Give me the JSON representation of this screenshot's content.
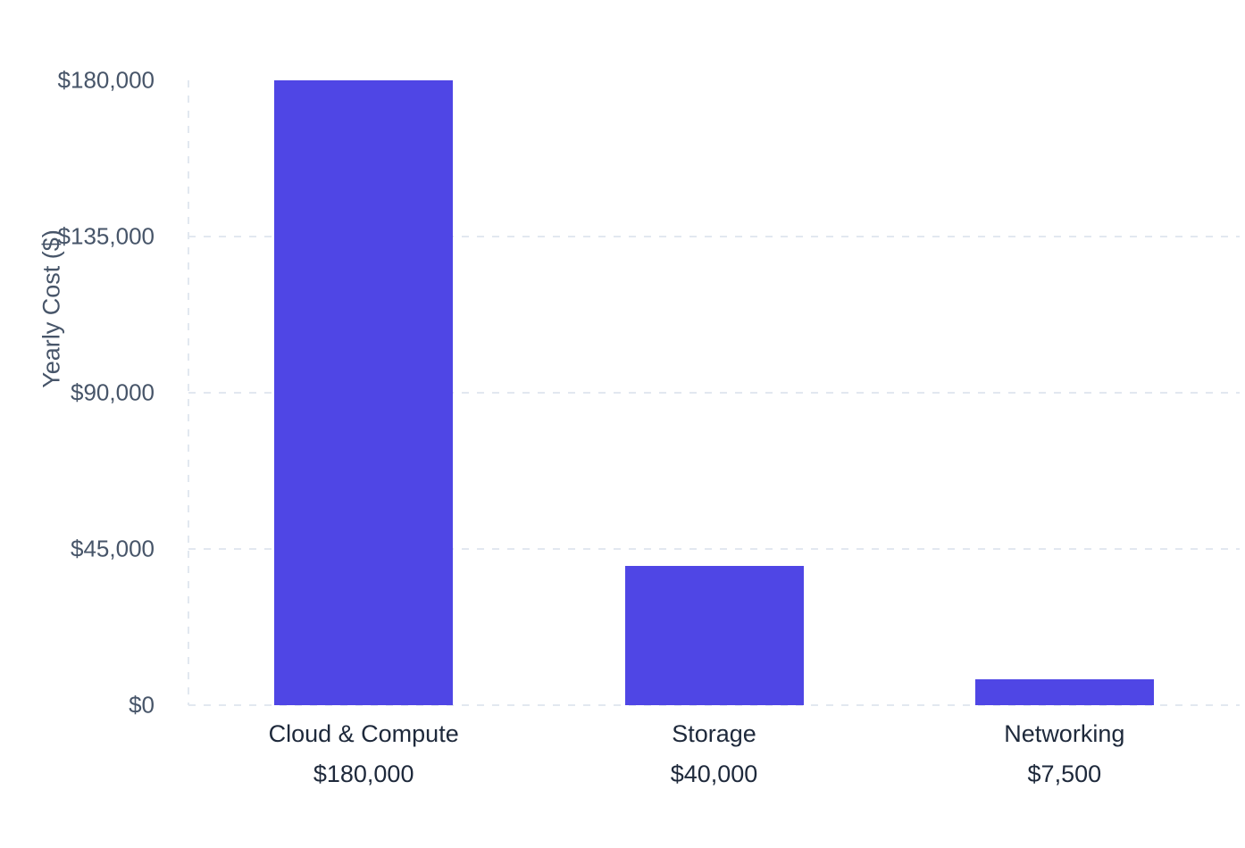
{
  "chart_data": {
    "type": "bar",
    "title": "",
    "xlabel": "",
    "ylabel": "Yearly Cost ($)",
    "categories": [
      "Cloud & Compute",
      "Storage",
      "Networking"
    ],
    "values": [
      180000,
      40000,
      7500
    ],
    "value_labels": [
      "$180,000",
      "$40,000",
      "$7,500"
    ],
    "ytick_values": [
      0,
      45000,
      90000,
      135000,
      180000
    ],
    "ytick_labels": [
      "$0",
      "$45,000",
      "$90,000",
      "$135,000",
      "$180,000"
    ],
    "ylim": [
      0,
      180000
    ],
    "legend": "none",
    "grid": "dashed horizontal gridlines at ticks (none at top), dashed vertical left axis, dashed baseline",
    "bar_color": "#4F46E5",
    "gridline_color": "#E2E8F0",
    "tick_label_color": "#475569",
    "category_label_color": "#1E293B",
    "background_color": "#FFFFFF"
  }
}
